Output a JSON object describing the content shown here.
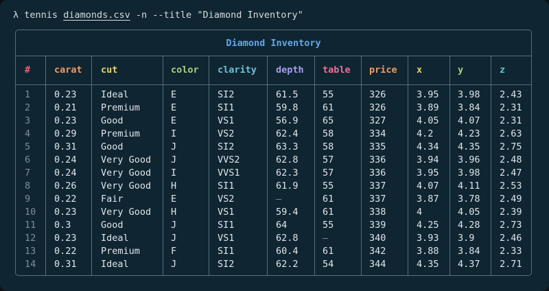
{
  "command": {
    "prompt": "λ",
    "program": "tennis",
    "file": "diamonds.csv",
    "flags": "-n --title",
    "title_arg": "\"Diamond Inventory\""
  },
  "table": {
    "title": "Diamond Inventory",
    "columns": [
      {
        "key": "#",
        "label": "#",
        "color": "#ef5f7a"
      },
      {
        "key": "carat",
        "label": "carat",
        "color": "#f09a62"
      },
      {
        "key": "cut",
        "label": "cut",
        "color": "#e7d36a"
      },
      {
        "key": "color",
        "label": "color",
        "color": "#a9d07a"
      },
      {
        "key": "clarity",
        "label": "clarity",
        "color": "#6fc2d8"
      },
      {
        "key": "depth",
        "label": "depth",
        "color": "#a79cf0"
      },
      {
        "key": "table",
        "label": "table",
        "color": "#ef6f9a"
      },
      {
        "key": "price",
        "label": "price",
        "color": "#f09a62"
      },
      {
        "key": "x",
        "label": "x",
        "color": "#e7d36a"
      },
      {
        "key": "y",
        "label": "y",
        "color": "#a9d07a"
      },
      {
        "key": "z",
        "label": "z",
        "color": "#6fc2d8"
      }
    ],
    "rows": [
      [
        "1",
        "0.23",
        "Ideal",
        "E",
        "SI2",
        "61.5",
        "55",
        "326",
        "3.95",
        "3.98",
        "2.43"
      ],
      [
        "2",
        "0.21",
        "Premium",
        "E",
        "SI1",
        "59.8",
        "61",
        "326",
        "3.89",
        "3.84",
        "2.31"
      ],
      [
        "3",
        "0.23",
        "Good",
        "E",
        "VS1",
        "56.9",
        "65",
        "327",
        "4.05",
        "4.07",
        "2.31"
      ],
      [
        "4",
        "0.29",
        "Premium",
        "I",
        "VS2",
        "62.4",
        "58",
        "334",
        "4.2",
        "4.23",
        "2.63"
      ],
      [
        "5",
        "0.31",
        "Good",
        "J",
        "SI2",
        "63.3",
        "58",
        "335",
        "4.34",
        "4.35",
        "2.75"
      ],
      [
        "6",
        "0.24",
        "Very Good",
        "J",
        "VVS2",
        "62.8",
        "57",
        "336",
        "3.94",
        "3.96",
        "2.48"
      ],
      [
        "7",
        "0.24",
        "Very Good",
        "I",
        "VVS1",
        "62.3",
        "57",
        "336",
        "3.95",
        "3.98",
        "2.47"
      ],
      [
        "8",
        "0.26",
        "Very Good",
        "H",
        "SI1",
        "61.9",
        "55",
        "337",
        "4.07",
        "4.11",
        "2.53"
      ],
      [
        "9",
        "0.22",
        "Fair",
        "E",
        "VS2",
        "—",
        "61",
        "337",
        "3.87",
        "3.78",
        "2.49"
      ],
      [
        "10",
        "0.23",
        "Very Good",
        "H",
        "VS1",
        "59.4",
        "61",
        "338",
        "4",
        "4.05",
        "2.39"
      ],
      [
        "11",
        "0.3",
        "Good",
        "J",
        "SI1",
        "64",
        "55",
        "339",
        "4.25",
        "4.28",
        "2.73"
      ],
      [
        "12",
        "0.23",
        "Ideal",
        "J",
        "VS1",
        "62.8",
        "—",
        "340",
        "3.93",
        "3.9",
        "2.46"
      ],
      [
        "13",
        "0.22",
        "Premium",
        "F",
        "SI1",
        "60.4",
        "61",
        "342",
        "3.88",
        "3.84",
        "2.33"
      ],
      [
        "14",
        "0.31",
        "Ideal",
        "J",
        "SI2",
        "62.2",
        "54",
        "344",
        "4.35",
        "4.37",
        "2.71"
      ]
    ]
  }
}
